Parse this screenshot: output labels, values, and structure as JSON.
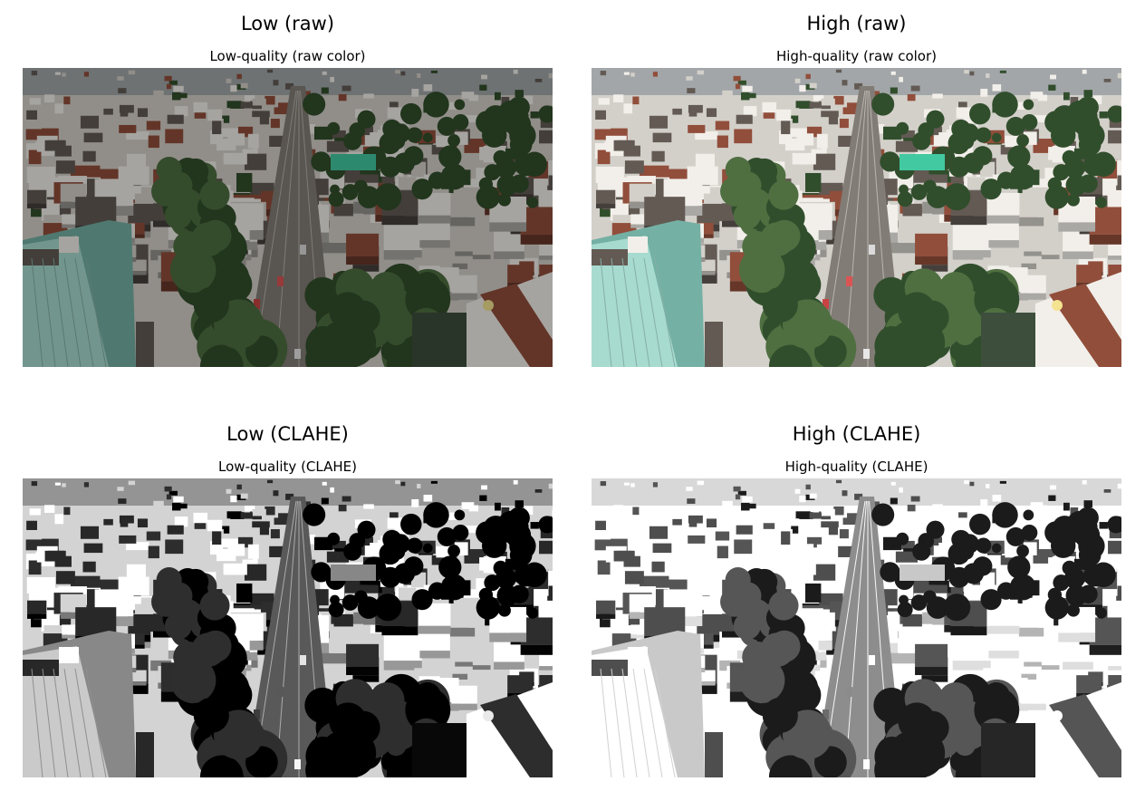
{
  "panels": [
    {
      "id": "p-tl",
      "title": "Low (raw)",
      "subtitle": "Low-quality (raw color)",
      "mode": "color",
      "quality": "low"
    },
    {
      "id": "p-tr",
      "title": "High (raw)",
      "subtitle": "High-quality (raw color)",
      "mode": "color",
      "quality": "high"
    },
    {
      "id": "p-bl",
      "title": "Low (CLAHE)",
      "subtitle": "Low-quality (CLAHE)",
      "mode": "gray",
      "quality": "low"
    },
    {
      "id": "p-br",
      "title": "High (CLAHE)",
      "subtitle": "High-quality (CLAHE)",
      "mode": "gray",
      "quality": "high"
    }
  ],
  "photo": {
    "description_icon": "aerial-city-street-photo",
    "colors": {
      "sky_haze": "#9a9ea0",
      "building_light": "#c9c6c0",
      "building_dark": "#5e5650",
      "brick": "#8a4a38",
      "tree": "#2f4a2a",
      "tree_light": "#4b6a3e",
      "road": "#7c7670",
      "tower": "#9fd1c6",
      "tower_shadow": "#6fa89c",
      "roof_white": "#e6e4df",
      "accent_green": "#3fbf9a",
      "court": "#3a4a3a"
    }
  }
}
